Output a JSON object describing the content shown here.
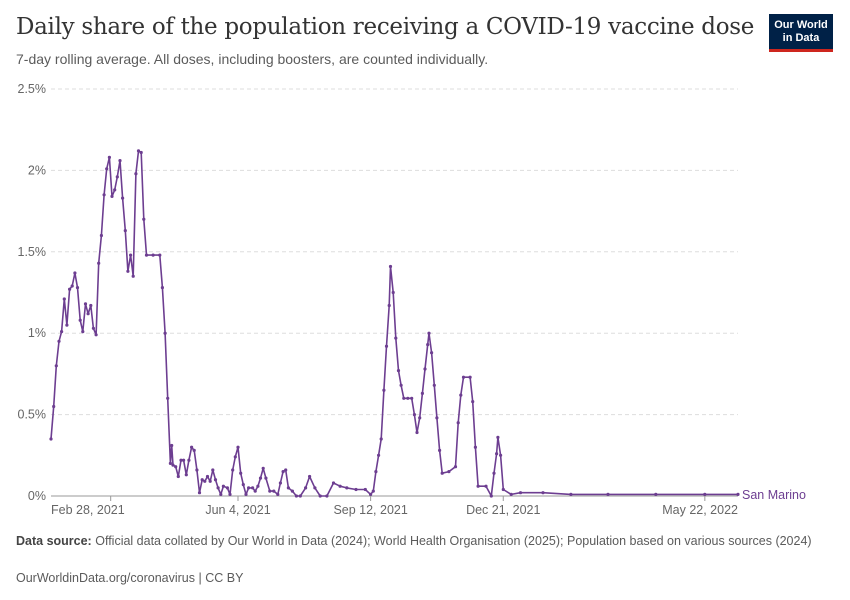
{
  "header": {
    "title": "Daily share of the population receiving a COVID-19 vaccine dose",
    "subtitle": "7-day rolling average. All doses, including boosters, are counted individually."
  },
  "logo": {
    "line1": "Our World",
    "line2": "in Data"
  },
  "footer": {
    "source_label": "Data source:",
    "source_text": "Official data collated by Our World in Data (2024); World Health Organisation (2025); Population based on various sources (2024)",
    "license": "OurWorldinData.org/coronavirus | CC BY"
  },
  "colors": {
    "series": "#6d3e91",
    "grid": "#dddddd",
    "axis": "#666666",
    "brand": "#002147",
    "brand_accent": "#ce261e"
  },
  "chart_data": {
    "type": "line",
    "x_start": "2021-01-14",
    "x_end": "2022-06-16",
    "xlim": [
      "2021-01-14",
      "2022-06-16"
    ],
    "ylim": [
      0,
      0.025
    ],
    "y_format": "percent",
    "y_ticks": [
      {
        "value": 0,
        "label": "0%"
      },
      {
        "value": 0.005,
        "label": "0.5%"
      },
      {
        "value": 0.01,
        "label": "1%"
      },
      {
        "value": 0.015,
        "label": "1.5%"
      },
      {
        "value": 0.02,
        "label": "2%"
      },
      {
        "value": 0.025,
        "label": "2.5%"
      }
    ],
    "x_ticks": [
      {
        "date": "2021-02-28",
        "label": "Feb 28, 2021"
      },
      {
        "date": "2021-06-04",
        "label": "Jun 4, 2021"
      },
      {
        "date": "2021-09-12",
        "label": "Sep 12, 2021"
      },
      {
        "date": "2021-12-21",
        "label": "Dec 21, 2021"
      },
      {
        "date": "2022-05-22",
        "label": "May 22, 2022"
      }
    ],
    "grid": true,
    "legend": "end-label",
    "series": [
      {
        "name": "San Marino",
        "points": [
          [
            "2021-01-14",
            0.0035
          ],
          [
            "2021-01-16",
            0.0055
          ],
          [
            "2021-01-18",
            0.008
          ],
          [
            "2021-01-20",
            0.0095
          ],
          [
            "2021-01-22",
            0.0101
          ],
          [
            "2021-01-24",
            0.0121
          ],
          [
            "2021-01-26",
            0.0105
          ],
          [
            "2021-01-28",
            0.0127
          ],
          [
            "2021-01-30",
            0.0129
          ],
          [
            "2021-02-01",
            0.0137
          ],
          [
            "2021-02-03",
            0.0128
          ],
          [
            "2021-02-05",
            0.0108
          ],
          [
            "2021-02-07",
            0.0101
          ],
          [
            "2021-02-09",
            0.0118
          ],
          [
            "2021-02-11",
            0.0112
          ],
          [
            "2021-02-13",
            0.0117
          ],
          [
            "2021-02-15",
            0.0103
          ],
          [
            "2021-02-17",
            0.0099
          ],
          [
            "2021-02-19",
            0.0143
          ],
          [
            "2021-02-21",
            0.016
          ],
          [
            "2021-02-23",
            0.0185
          ],
          [
            "2021-02-25",
            0.0201
          ],
          [
            "2021-02-27",
            0.0208
          ],
          [
            "2021-03-01",
            0.0184
          ],
          [
            "2021-03-03",
            0.0188
          ],
          [
            "2021-03-05",
            0.0196
          ],
          [
            "2021-03-07",
            0.0206
          ],
          [
            "2021-03-09",
            0.0183
          ],
          [
            "2021-03-11",
            0.0163
          ],
          [
            "2021-03-13",
            0.0138
          ],
          [
            "2021-03-15",
            0.0148
          ],
          [
            "2021-03-17",
            0.0135
          ],
          [
            "2021-03-19",
            0.0198
          ],
          [
            "2021-03-21",
            0.0212
          ],
          [
            "2021-03-23",
            0.0211
          ],
          [
            "2021-03-25",
            0.017
          ],
          [
            "2021-03-27",
            0.0148
          ],
          [
            "2021-04-01",
            0.0148
          ],
          [
            "2021-04-06",
            0.0148
          ],
          [
            "2021-04-08",
            0.0128
          ],
          [
            "2021-04-10",
            0.01
          ],
          [
            "2021-04-12",
            0.006
          ],
          [
            "2021-04-14",
            0.002
          ],
          [
            "2021-04-15",
            0.0031
          ],
          [
            "2021-04-16",
            0.0019
          ],
          [
            "2021-04-18",
            0.0018
          ],
          [
            "2021-04-20",
            0.0012
          ],
          [
            "2021-04-22",
            0.0022
          ],
          [
            "2021-04-24",
            0.0022
          ],
          [
            "2021-04-26",
            0.0013
          ],
          [
            "2021-04-28",
            0.0022
          ],
          [
            "2021-04-30",
            0.003
          ],
          [
            "2021-05-02",
            0.0028
          ],
          [
            "2021-05-04",
            0.0016
          ],
          [
            "2021-05-06",
            0.0002
          ],
          [
            "2021-05-08",
            0.001
          ],
          [
            "2021-05-10",
            0.0009
          ],
          [
            "2021-05-12",
            0.0012
          ],
          [
            "2021-05-14",
            0.0009
          ],
          [
            "2021-05-16",
            0.0016
          ],
          [
            "2021-05-18",
            0.001
          ],
          [
            "2021-05-20",
            0.0005
          ],
          [
            "2021-05-22",
            0.0001
          ],
          [
            "2021-05-24",
            0.0006
          ],
          [
            "2021-05-27",
            0.0005
          ],
          [
            "2021-05-29",
            0.0001
          ],
          [
            "2021-05-31",
            0.0016
          ],
          [
            "2021-06-02",
            0.0024
          ],
          [
            "2021-06-04",
            0.003
          ],
          [
            "2021-06-06",
            0.0014
          ],
          [
            "2021-06-08",
            0.0007
          ],
          [
            "2021-06-10",
            0.0001
          ],
          [
            "2021-06-12",
            0.0005
          ],
          [
            "2021-06-15",
            0.0005
          ],
          [
            "2021-06-17",
            0.0003
          ],
          [
            "2021-06-19",
            0.0006
          ],
          [
            "2021-06-21",
            0.0011
          ],
          [
            "2021-06-23",
            0.0017
          ],
          [
            "2021-06-25",
            0.0011
          ],
          [
            "2021-06-28",
            0.0003
          ],
          [
            "2021-07-01",
            0.0003
          ],
          [
            "2021-07-04",
            0.0001
          ],
          [
            "2021-07-06",
            0.0008
          ],
          [
            "2021-07-08",
            0.0015
          ],
          [
            "2021-07-10",
            0.0016
          ],
          [
            "2021-07-12",
            0.0005
          ],
          [
            "2021-07-15",
            0.0003
          ],
          [
            "2021-07-18",
            0.0
          ],
          [
            "2021-07-21",
            0.0
          ],
          [
            "2021-07-25",
            0.0005
          ],
          [
            "2021-07-28",
            0.0012
          ],
          [
            "2021-08-01",
            0.0005
          ],
          [
            "2021-08-05",
            0.0
          ],
          [
            "2021-08-10",
            0.0
          ],
          [
            "2021-08-15",
            0.0008
          ],
          [
            "2021-08-20",
            0.0006
          ],
          [
            "2021-08-25",
            0.0005
          ],
          [
            "2021-09-01",
            0.0004
          ],
          [
            "2021-09-08",
            0.0004
          ],
          [
            "2021-09-12",
            0.0001
          ],
          [
            "2021-09-14",
            0.0003
          ],
          [
            "2021-09-16",
            0.0015
          ],
          [
            "2021-09-18",
            0.0025
          ],
          [
            "2021-09-20",
            0.0035
          ],
          [
            "2021-09-22",
            0.0065
          ],
          [
            "2021-09-24",
            0.0092
          ],
          [
            "2021-09-26",
            0.0117
          ],
          [
            "2021-09-27",
            0.0141
          ],
          [
            "2021-09-29",
            0.0125
          ],
          [
            "2021-10-01",
            0.0097
          ],
          [
            "2021-10-03",
            0.0077
          ],
          [
            "2021-10-05",
            0.0068
          ],
          [
            "2021-10-07",
            0.006
          ],
          [
            "2021-10-10",
            0.006
          ],
          [
            "2021-10-13",
            0.006
          ],
          [
            "2021-10-15",
            0.005
          ],
          [
            "2021-10-17",
            0.0039
          ],
          [
            "2021-10-19",
            0.0048
          ],
          [
            "2021-10-21",
            0.0063
          ],
          [
            "2021-10-23",
            0.0078
          ],
          [
            "2021-10-25",
            0.0093
          ],
          [
            "2021-10-26",
            0.01
          ],
          [
            "2021-10-28",
            0.0088
          ],
          [
            "2021-10-30",
            0.0068
          ],
          [
            "2021-11-01",
            0.0048
          ],
          [
            "2021-11-03",
            0.0028
          ],
          [
            "2021-11-05",
            0.0014
          ],
          [
            "2021-11-10",
            0.0015
          ],
          [
            "2021-11-15",
            0.0018
          ],
          [
            "2021-11-17",
            0.0045
          ],
          [
            "2021-11-19",
            0.0062
          ],
          [
            "2021-11-21",
            0.0073
          ],
          [
            "2021-11-26",
            0.0073
          ],
          [
            "2021-11-28",
            0.0058
          ],
          [
            "2021-11-30",
            0.003
          ],
          [
            "2021-12-02",
            0.0006
          ],
          [
            "2021-12-08",
            0.0006
          ],
          [
            "2021-12-12",
            0.0
          ],
          [
            "2021-12-14",
            0.0014
          ],
          [
            "2021-12-16",
            0.0026
          ],
          [
            "2021-12-17",
            0.0036
          ],
          [
            "2021-12-19",
            0.0025
          ],
          [
            "2021-12-21",
            0.0004
          ],
          [
            "2021-12-27",
            0.0001
          ],
          [
            "2022-01-03",
            0.0002
          ],
          [
            "2022-01-20",
            0.0002
          ],
          [
            "2022-02-10",
            0.0001
          ],
          [
            "2022-03-10",
            0.0001
          ],
          [
            "2022-04-15",
            0.0001
          ],
          [
            "2022-05-22",
            0.0001
          ],
          [
            "2022-06-16",
            0.0001
          ]
        ]
      }
    ]
  }
}
